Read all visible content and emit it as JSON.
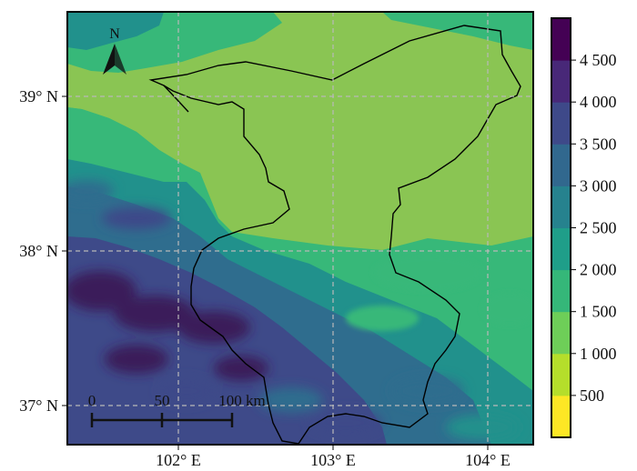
{
  "map": {
    "lat_labels": [
      "39° N",
      "38° N",
      "37° N"
    ],
    "lon_labels": [
      "102° E",
      "103° E",
      "104° E"
    ],
    "north_arrow": {
      "label": "N",
      "icon": "north-arrow-icon"
    },
    "scale_bar": {
      "ticks": [
        "0",
        "50",
        "100 km"
      ]
    },
    "grid": true,
    "grid_style": "dashed",
    "colors": {
      "very_high": "#3a1f5a",
      "high": "#3e4a89",
      "mid_high": "#2f6d8e",
      "mid": "#21918c",
      "mid_low": "#37b879",
      "low": "#8ac553",
      "very_low": "#d4d82f"
    }
  },
  "colorbar": {
    "title": "",
    "tick_labels": [
      "500",
      "1 000",
      "1 500",
      "2 000",
      "2 500",
      "3 000",
      "3 500",
      "4 000",
      "4 500"
    ],
    "colors": [
      "#fde725",
      "#b5de2b",
      "#6ece58",
      "#35b779",
      "#1f9e89",
      "#26828e",
      "#31688e",
      "#3e4989",
      "#482878",
      "#440154"
    ]
  }
}
